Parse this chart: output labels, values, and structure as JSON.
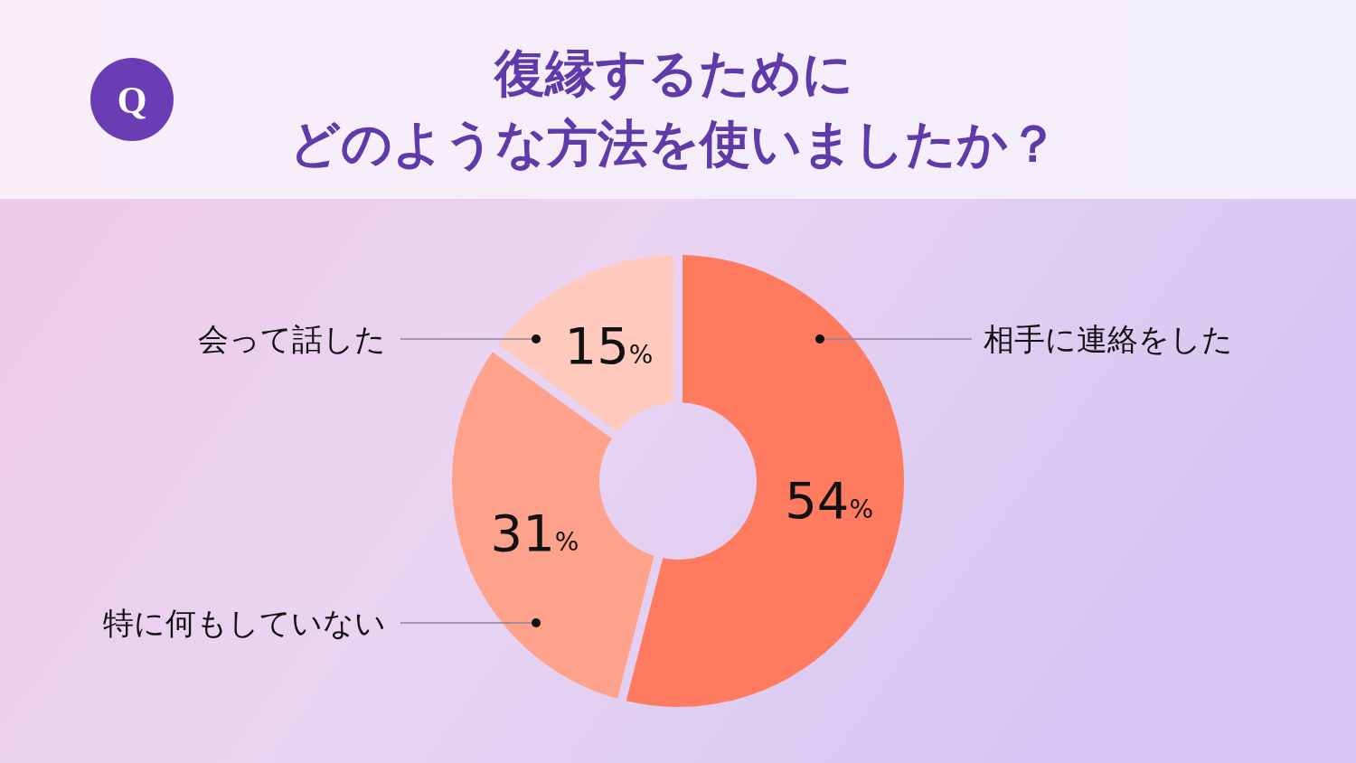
{
  "chart_data": {
    "type": "donut",
    "title": "復縁するためにどのような方法を使いましたか？",
    "categories": [
      "相手に連絡をした",
      "特に何もしていない",
      "会って話した"
    ],
    "values": [
      54,
      31,
      15
    ],
    "colors": [
      "#ff7b5f",
      "#ffa28c",
      "#ffcabd"
    ],
    "value_labels": [
      "54%",
      "31%",
      "15%"
    ],
    "annotations": [
      "Q"
    ]
  }
}
